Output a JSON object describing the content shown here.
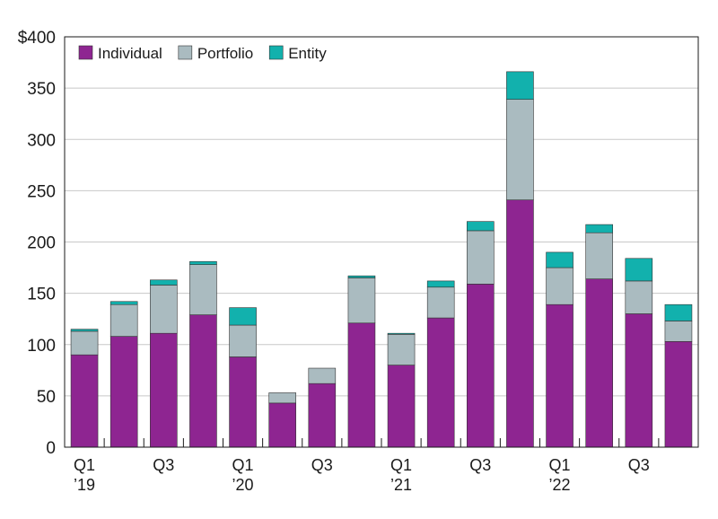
{
  "chart_data": {
    "type": "bar",
    "stacked": true,
    "categories": [
      "Q1 ’19",
      "Q2 ’19",
      "Q3 ’19",
      "Q4 ’19",
      "Q1 ’20",
      "Q2 ’20",
      "Q3 ’20",
      "Q4 ’20",
      "Q1 ’21",
      "Q2 ’21",
      "Q3 ’21",
      "Q4 ’21",
      "Q1 ’22",
      "Q2 ’22",
      "Q3 ’22",
      "Q4 ’22"
    ],
    "x_tick_labels": [
      {
        "index": 0,
        "lines": [
          "Q1",
          "’19"
        ]
      },
      {
        "index": 2,
        "lines": [
          "Q3"
        ]
      },
      {
        "index": 4,
        "lines": [
          "Q1",
          "’20"
        ]
      },
      {
        "index": 6,
        "lines": [
          "Q3"
        ]
      },
      {
        "index": 8,
        "lines": [
          "Q1",
          "’21"
        ]
      },
      {
        "index": 10,
        "lines": [
          "Q3"
        ]
      },
      {
        "index": 12,
        "lines": [
          "Q1",
          "’22"
        ]
      },
      {
        "index": 14,
        "lines": [
          "Q3"
        ]
      }
    ],
    "series": [
      {
        "name": "Individual",
        "color": "#8e2591",
        "values": [
          90,
          108,
          111,
          129,
          88,
          43,
          62,
          121,
          80,
          126,
          159,
          241,
          139,
          164,
          130,
          103
        ]
      },
      {
        "name": "Portfolio",
        "color": "#aabbc0",
        "values": [
          23,
          31,
          47,
          49,
          31,
          10,
          15,
          44,
          30,
          30,
          52,
          98,
          36,
          45,
          32,
          20
        ]
      },
      {
        "name": "Entity",
        "color": "#12b1ad",
        "values": [
          2,
          3,
          5,
          3,
          17,
          0,
          0,
          2,
          1,
          6,
          9,
          27,
          15,
          8,
          22,
          16
        ]
      }
    ],
    "ylim": [
      0,
      400
    ],
    "yticks": [
      0,
      50,
      100,
      150,
      200,
      250,
      300,
      350,
      400
    ],
    "ytick_labels": [
      "0",
      "50",
      "100",
      "150",
      "200",
      "250",
      "300",
      "350",
      "$400"
    ],
    "grid": true,
    "legend_position": "top-left",
    "title": "",
    "xlabel": "",
    "ylabel": ""
  }
}
